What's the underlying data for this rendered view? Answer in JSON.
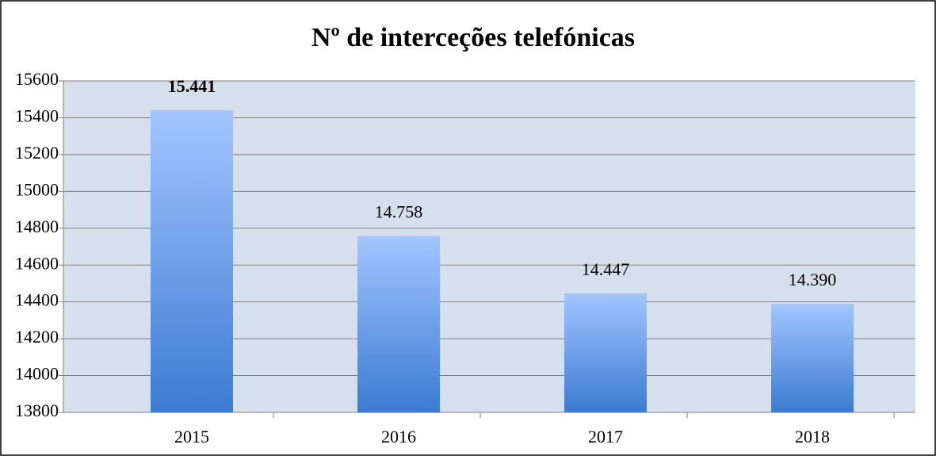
{
  "chart_data": {
    "type": "bar",
    "title": "Nº de interceções telefónicas",
    "categories": [
      "2015",
      "2016",
      "2017",
      "2018"
    ],
    "values": [
      15441,
      14758,
      14447,
      14390
    ],
    "value_labels": [
      "15.441",
      "14.758",
      "14.447",
      "14.390"
    ],
    "color": "#5d94e3",
    "ylim": [
      13800,
      15600
    ],
    "yticks": [
      13800,
      14000,
      14200,
      14400,
      14600,
      14800,
      15000,
      15200,
      15400,
      15600
    ],
    "grid": true
  }
}
